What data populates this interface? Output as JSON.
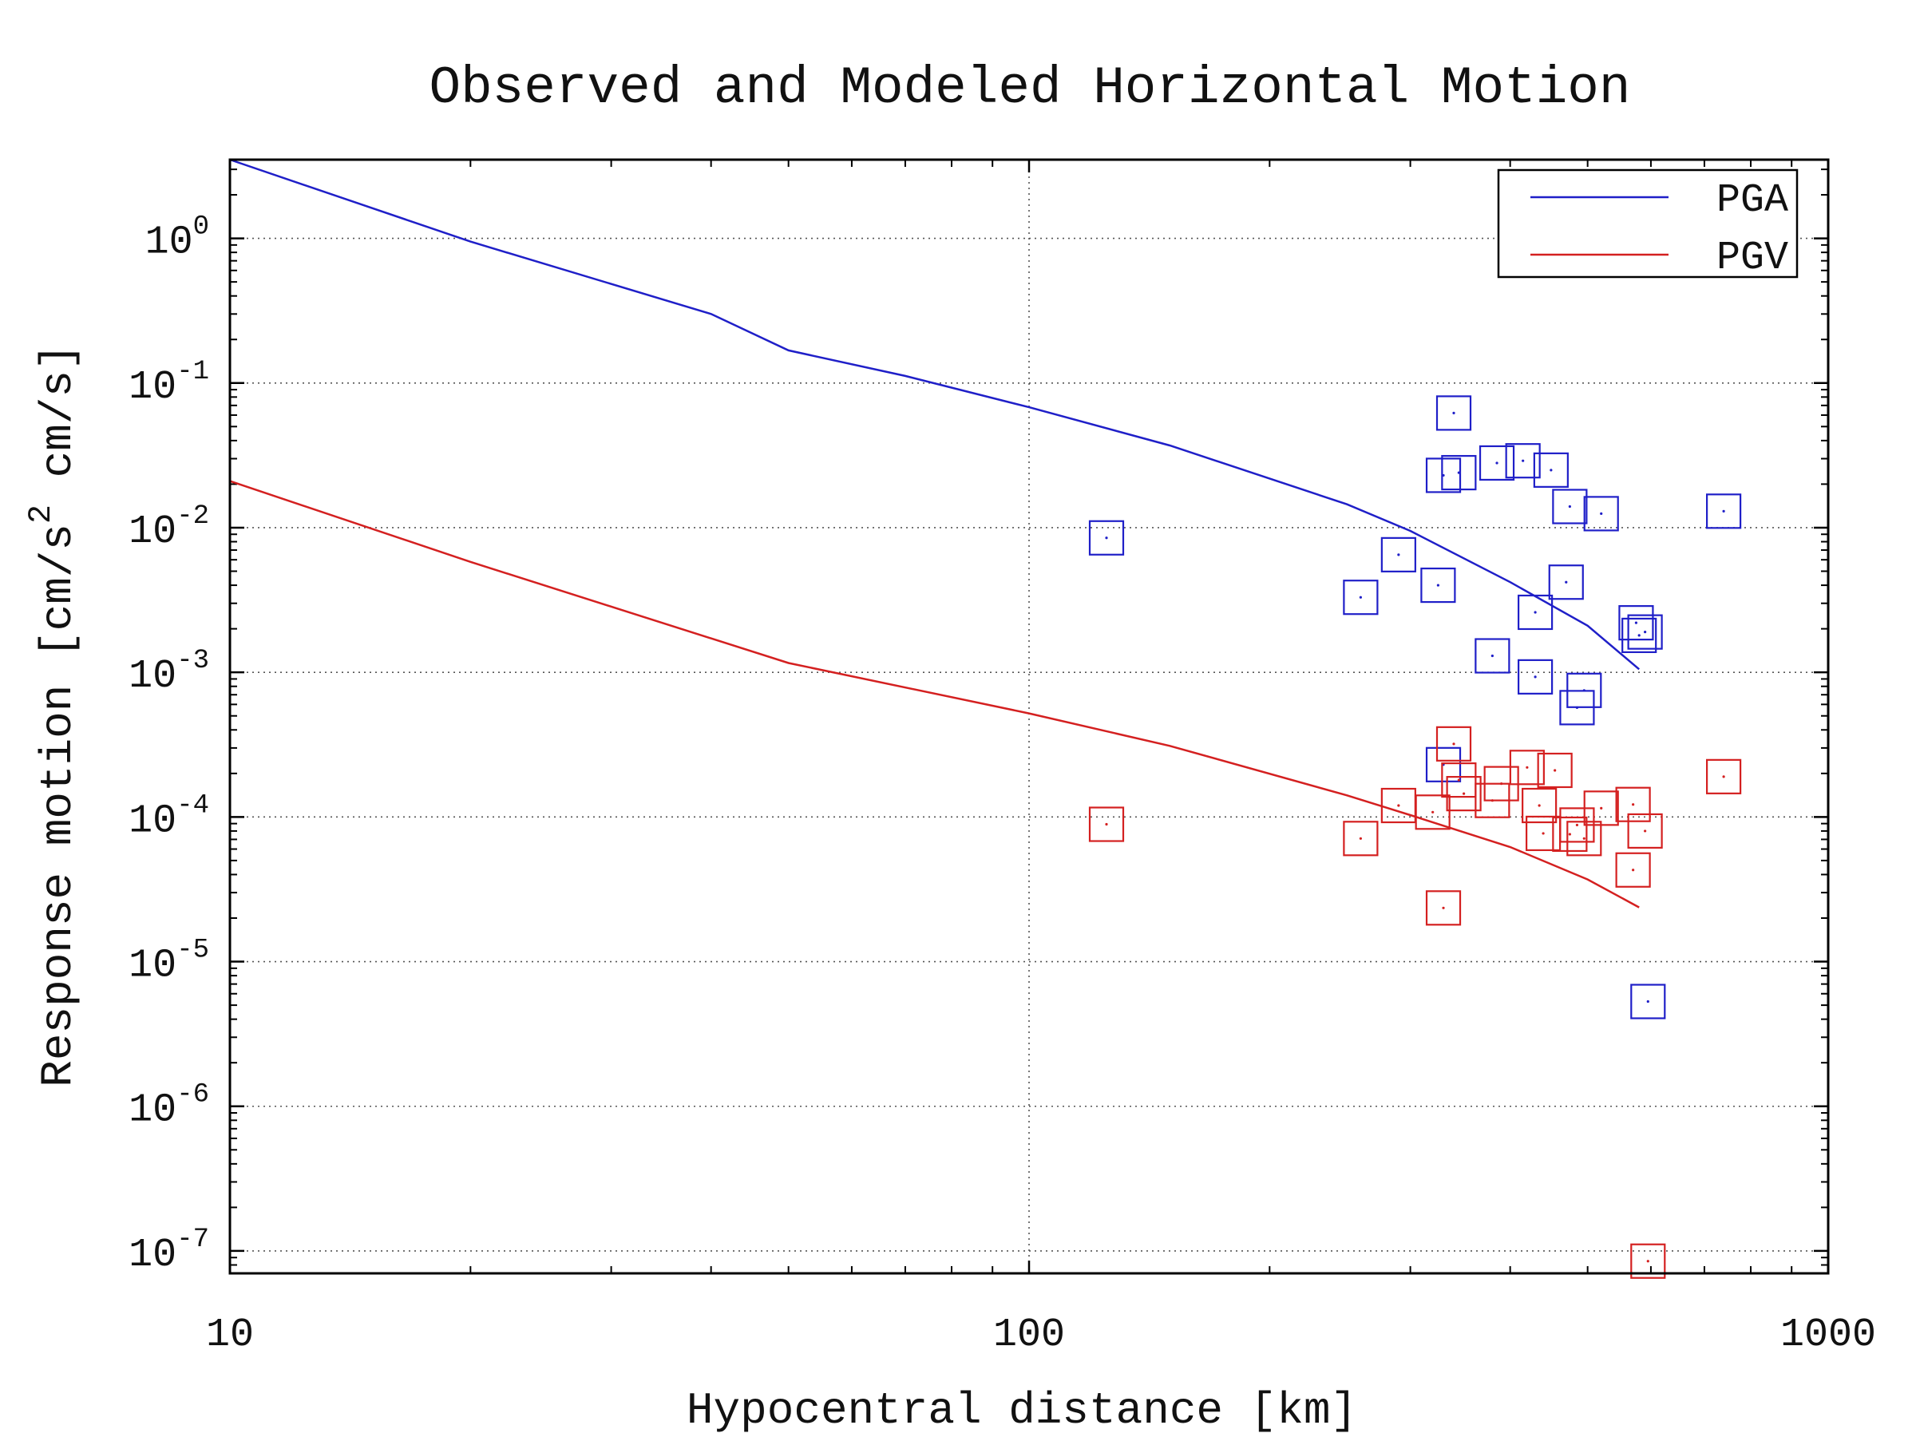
{
  "chart_data": {
    "type": "scatter",
    "title": "Observed and Modeled Horizontal Motion",
    "xlabel": "Hypocentral distance [km]",
    "ylabel": "Response motion [cm/s² cm/s]",
    "ylabel_parts": [
      "Response motion [cm/s",
      "2",
      " cm/s]"
    ],
    "x_scale": "log",
    "y_scale": "log",
    "xlim": [
      10,
      1000
    ],
    "ylim": [
      7e-08,
      3.5
    ],
    "grid": true,
    "legend_position": "top-right",
    "x_ticks": [
      {
        "value": 10,
        "label": "10"
      },
      {
        "value": 100,
        "label": "100"
      },
      {
        "value": 1000,
        "label": "1000"
      }
    ],
    "y_ticks": [
      {
        "value": 1,
        "base": "10",
        "exp": "0"
      },
      {
        "value": 0.1,
        "base": "10",
        "exp": "-1"
      },
      {
        "value": 0.01,
        "base": "10",
        "exp": "-2"
      },
      {
        "value": 0.001,
        "base": "10",
        "exp": "-3"
      },
      {
        "value": 0.0001,
        "base": "10",
        "exp": "-4"
      },
      {
        "value": 1e-05,
        "base": "10",
        "exp": "-5"
      },
      {
        "value": 1e-06,
        "base": "10",
        "exp": "-6"
      },
      {
        "value": 1e-07,
        "base": "10",
        "exp": "-7"
      }
    ],
    "lines": [
      {
        "name": "PGA",
        "color": "#1f1fc8",
        "points": [
          [
            10,
            3.5
          ],
          [
            20,
            0.95
          ],
          [
            40,
            0.3
          ],
          [
            50,
            0.168
          ],
          [
            70,
            0.112
          ],
          [
            100,
            0.068
          ],
          [
            150,
            0.037
          ],
          [
            250,
            0.0145
          ],
          [
            300,
            0.0095
          ],
          [
            400,
            0.0042
          ],
          [
            500,
            0.0021
          ],
          [
            580,
            0.00105
          ]
        ]
      },
      {
        "name": "PGV",
        "color": "#d42020",
        "points": [
          [
            10,
            0.021
          ],
          [
            20,
            0.0058
          ],
          [
            50,
            0.00116
          ],
          [
            100,
            0.00052
          ],
          [
            150,
            0.00031
          ],
          [
            250,
            0.000141
          ],
          [
            300,
            0.000103
          ],
          [
            400,
            6.2e-05
          ],
          [
            500,
            3.7e-05
          ],
          [
            580,
            2.37e-05
          ]
        ]
      }
    ],
    "series": [
      {
        "name": "PGA",
        "color": "#1f1fc8",
        "points": [
          [
            125,
            0.0085
          ],
          [
            260,
            0.0033
          ],
          [
            290,
            0.0065
          ],
          [
            325,
            0.004
          ],
          [
            330,
            0.023
          ],
          [
            340,
            0.062
          ],
          [
            345,
            0.024
          ],
          [
            380,
            0.0013
          ],
          [
            385,
            0.028
          ],
          [
            415,
            0.029
          ],
          [
            430,
            0.00093
          ],
          [
            430,
            0.0026
          ],
          [
            450,
            0.025
          ],
          [
            470,
            0.0042
          ],
          [
            475,
            0.014
          ],
          [
            485,
            0.00057
          ],
          [
            495,
            0.00075
          ],
          [
            520,
            0.0125
          ],
          [
            575,
            0.0022
          ],
          [
            580,
            0.0018
          ],
          [
            590,
            0.0019
          ],
          [
            740,
            0.013
          ],
          [
            595,
            5.3e-06
          ],
          [
            330,
            0.00023
          ]
        ]
      },
      {
        "name": "PGV",
        "color": "#d42020",
        "points": [
          [
            125,
            8.9e-05
          ],
          [
            260,
            7.1e-05
          ],
          [
            290,
            0.00012
          ],
          [
            320,
            0.000108
          ],
          [
            330,
            2.35e-05
          ],
          [
            340,
            0.00032
          ],
          [
            345,
            0.00018
          ],
          [
            350,
            0.000145
          ],
          [
            380,
            0.00013
          ],
          [
            390,
            0.00017
          ],
          [
            420,
            0.00022
          ],
          [
            435,
            0.00012
          ],
          [
            440,
            7.7e-05
          ],
          [
            455,
            0.00021
          ],
          [
            475,
            7.6e-05
          ],
          [
            485,
            8.8e-05
          ],
          [
            495,
            7.1e-05
          ],
          [
            520,
            0.000115
          ],
          [
            570,
            0.000122
          ],
          [
            570,
            4.3e-05
          ],
          [
            590,
            8e-05
          ],
          [
            740,
            0.00019
          ],
          [
            595,
            8.5e-08
          ]
        ]
      }
    ],
    "legend": [
      {
        "name": "PGA",
        "color": "#1f1fc8"
      },
      {
        "name": "PGV",
        "color": "#d42020"
      }
    ]
  }
}
